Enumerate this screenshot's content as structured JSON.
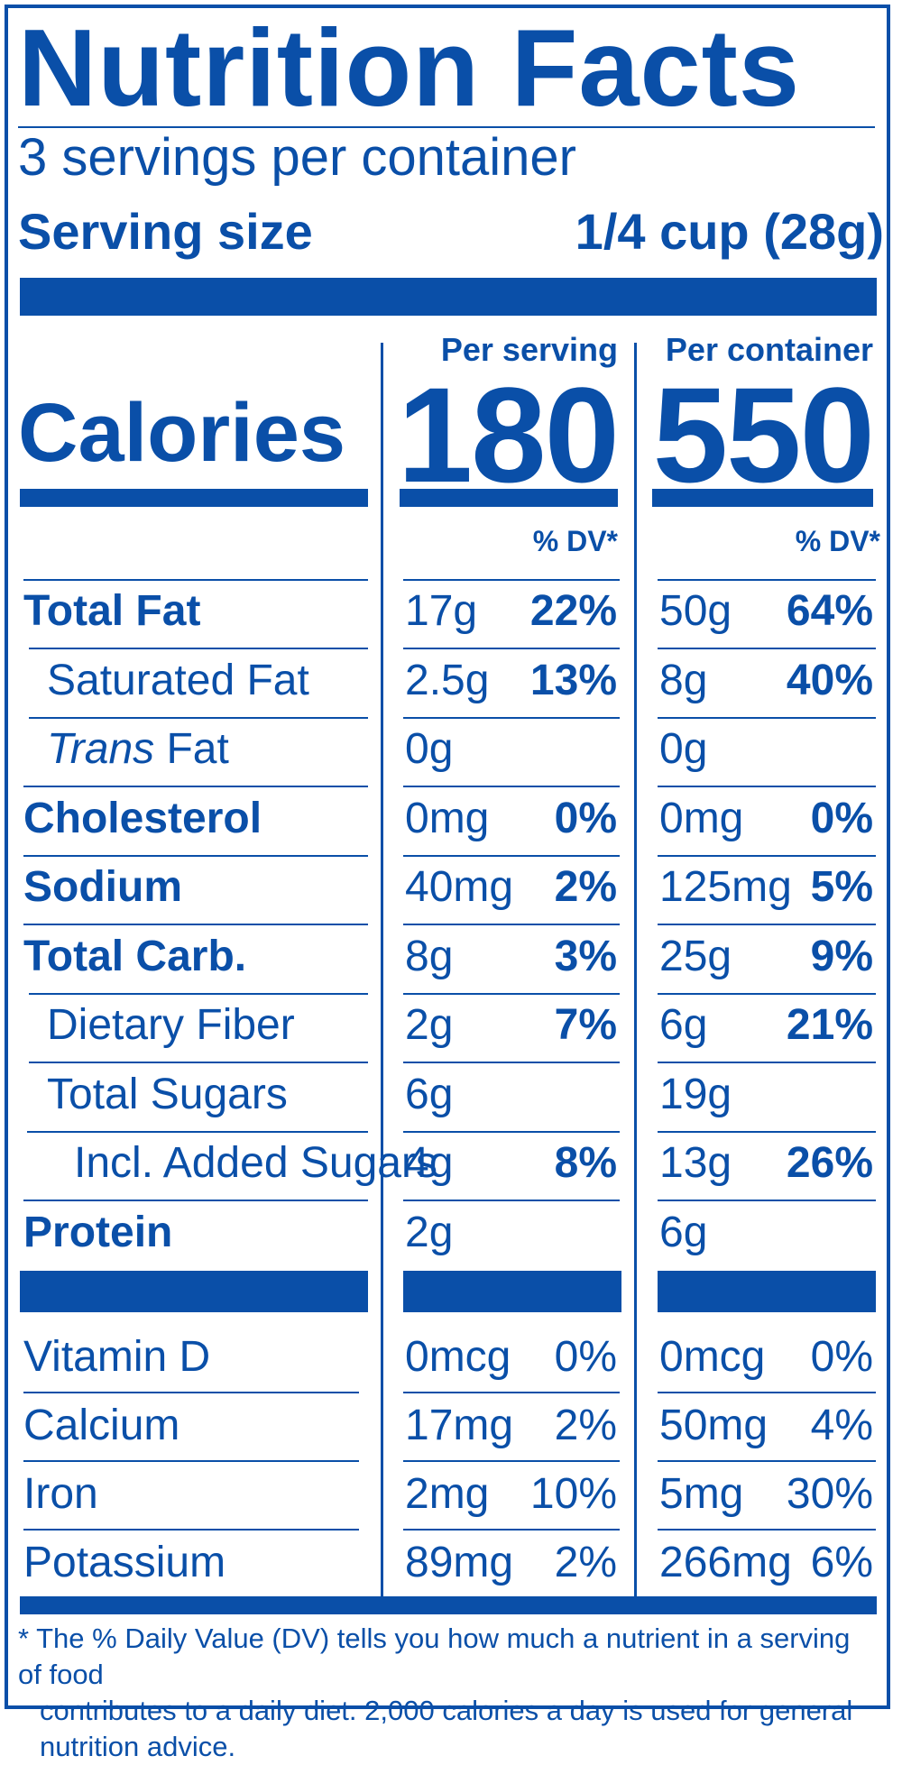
{
  "title": "Nutrition Facts",
  "servings_per_container": "3 servings per container",
  "serving_size_label": "Serving size",
  "serving_size_value": "1/4 cup (28g)",
  "calories_label": "Calories",
  "columns": [
    {
      "heading": "Per serving",
      "calories": "180",
      "dv_heading": "% DV*"
    },
    {
      "heading": "Per container",
      "calories": "550",
      "dv_heading": "% DV*"
    }
  ],
  "nutrients": [
    {
      "label": "Total Fat",
      "style": "bold",
      "serving_amount": "17g",
      "serving_dv": "22%",
      "container_amount": "50g",
      "container_dv": "64%"
    },
    {
      "label": "Saturated Fat",
      "style": "indent1",
      "serving_amount": "2.5g",
      "serving_dv": "13%",
      "container_amount": "8g",
      "container_dv": "40%"
    },
    {
      "label_italic": "Trans",
      "label": " Fat",
      "style": "indent1",
      "serving_amount": "0g",
      "serving_dv": "",
      "container_amount": "0g",
      "container_dv": ""
    },
    {
      "label": "Cholesterol",
      "style": "bold",
      "serving_amount": "0mg",
      "serving_dv": "0%",
      "container_amount": "0mg",
      "container_dv": "0%"
    },
    {
      "label": "Sodium",
      "style": "bold",
      "serving_amount": "40mg",
      "serving_dv": "2%",
      "container_amount": "125mg",
      "container_dv": "5%"
    },
    {
      "label": "Total Carb.",
      "style": "bold",
      "serving_amount": "8g",
      "serving_dv": "3%",
      "container_amount": "25g",
      "container_dv": "9%"
    },
    {
      "label": "Dietary Fiber",
      "style": "indent1",
      "serving_amount": "2g",
      "serving_dv": "7%",
      "container_amount": "6g",
      "container_dv": "21%"
    },
    {
      "label": "Total Sugars",
      "style": "indent1",
      "serving_amount": "6g",
      "serving_dv": "",
      "container_amount": "19g",
      "container_dv": ""
    },
    {
      "label": "Incl. Added Sugars",
      "style": "indent2",
      "serving_amount": "4g",
      "serving_dv": "8%",
      "container_amount": "13g",
      "container_dv": "26%"
    },
    {
      "label": "Protein",
      "style": "bold",
      "serving_amount": "2g",
      "serving_dv": "",
      "container_amount": "6g",
      "container_dv": ""
    }
  ],
  "vitamins": [
    {
      "label": "Vitamin D",
      "serving_amount": "0mcg",
      "serving_dv": "0%",
      "container_amount": "0mcg",
      "container_dv": "0%"
    },
    {
      "label": "Calcium",
      "serving_amount": "17mg",
      "serving_dv": "2%",
      "container_amount": "50mg",
      "container_dv": "4%"
    },
    {
      "label": "Iron",
      "serving_amount": "2mg",
      "serving_dv": "10%",
      "container_amount": "5mg",
      "container_dv": "30%"
    },
    {
      "label": "Potassium",
      "serving_amount": "89mg",
      "serving_dv": "2%",
      "container_amount": "266mg",
      "container_dv": "6%"
    }
  ],
  "footnote_line1": "* The % Daily Value (DV) tells you how much a nutrient in a serving of food",
  "footnote_line2": "contributes to a daily diet. 2,000 calories a day is used for general nutrition advice.",
  "colors": {
    "ink": "#0a4fa8",
    "background": "#ffffff"
  }
}
